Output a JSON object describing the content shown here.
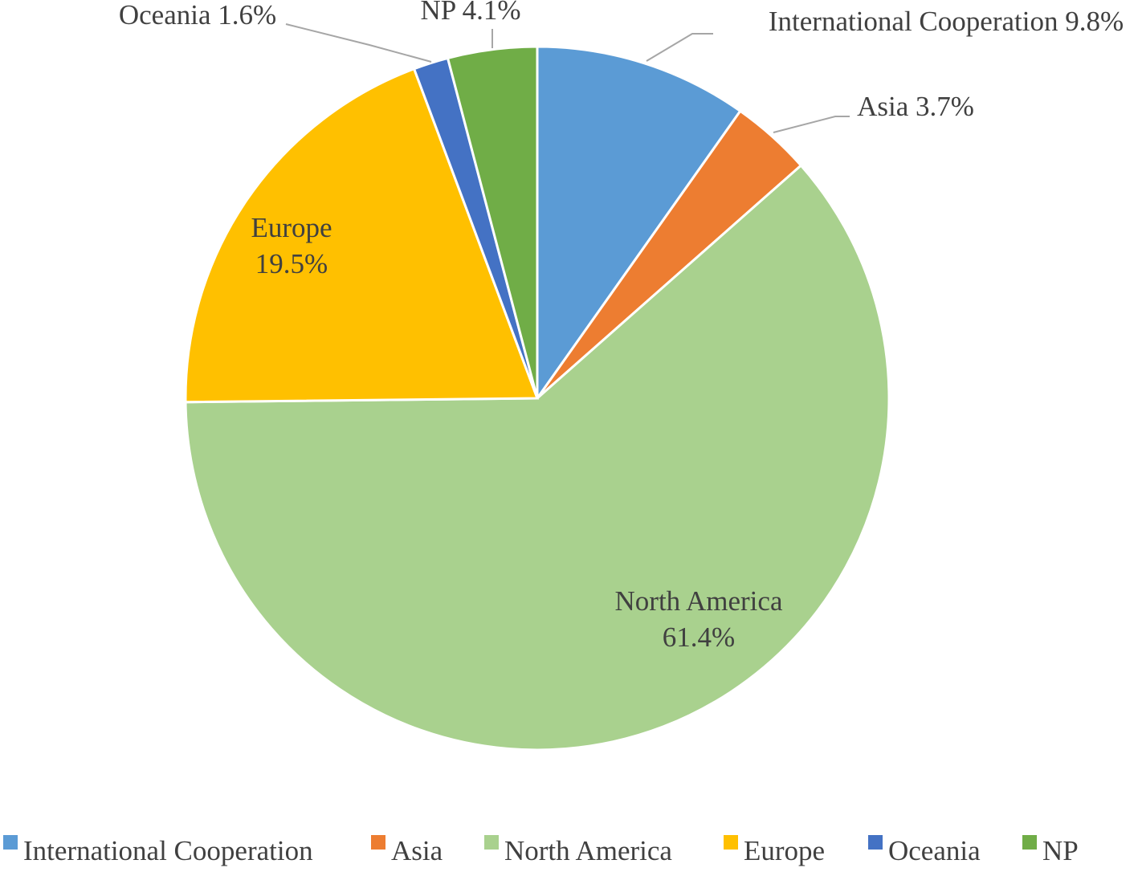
{
  "chart_data": {
    "type": "pie",
    "title": "",
    "categories": [
      "International Cooperation",
      "Asia",
      "North America",
      "Europe",
      "Oceania",
      "NP"
    ],
    "values": [
      9.8,
      3.7,
      61.4,
      19.5,
      1.6,
      4.1
    ],
    "unit": "%",
    "colors": [
      "#5b9bd5",
      "#ed7d31",
      "#a9d18e",
      "#ffc000",
      "#4472c4",
      "#70ad47"
    ],
    "data_labels": [
      "International Cooperation 9.8%",
      "Asia 3.7%",
      [
        "North America",
        "61.4%"
      ],
      [
        "Europe",
        "19.5%"
      ],
      "Oceania 1.6%",
      "NP 4.1%"
    ],
    "legend": {
      "position": "bottom",
      "entries": [
        "International Cooperation",
        "Asia",
        "North America",
        "Europe",
        "Oceania",
        "NP"
      ]
    },
    "start_angle_deg": 0,
    "direction": "clockwise"
  }
}
